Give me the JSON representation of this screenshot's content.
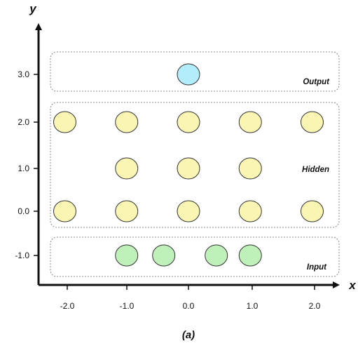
{
  "axes": {
    "x_label": "x",
    "y_label": "y",
    "x_ticks": [
      "-2.0",
      "-1.0",
      "0.0",
      "1.0",
      "2.0"
    ],
    "y_ticks": [
      "3.0",
      "2.0",
      "1.0",
      "0.0",
      "-1.0"
    ]
  },
  "groups": {
    "output": "Output",
    "hidden": "Hidden",
    "input": "Input"
  },
  "caption": "(a)",
  "colors": {
    "output_node": "#b3ecfa",
    "hidden_node": "#fbf5b4",
    "input_node": "#bff0b9",
    "node_stroke": "#333333",
    "axis": "#111111",
    "group_border": "#888888"
  },
  "nodes": {
    "output": [
      {
        "x": 0.0,
        "y": 3.0
      }
    ],
    "hidden": [
      {
        "x": -2.0,
        "y": 2.0
      },
      {
        "x": -1.0,
        "y": 2.0
      },
      {
        "x": 0.0,
        "y": 2.0
      },
      {
        "x": 1.0,
        "y": 2.0
      },
      {
        "x": 2.0,
        "y": 2.0
      },
      {
        "x": -1.0,
        "y": 1.0
      },
      {
        "x": 0.0,
        "y": 1.0
      },
      {
        "x": 1.0,
        "y": 1.0
      },
      {
        "x": -2.0,
        "y": 0.0
      },
      {
        "x": -1.0,
        "y": 0.0
      },
      {
        "x": 0.0,
        "y": 0.0
      },
      {
        "x": 1.0,
        "y": 0.0
      },
      {
        "x": 2.0,
        "y": 0.0
      }
    ],
    "input": [
      {
        "x": -1.0,
        "y": -1.0
      },
      {
        "x": -0.4,
        "y": -1.0
      },
      {
        "x": 0.45,
        "y": -1.0
      },
      {
        "x": 1.0,
        "y": -1.0
      }
    ]
  }
}
